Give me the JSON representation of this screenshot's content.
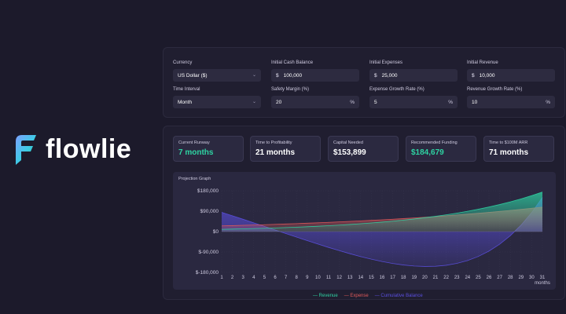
{
  "logo": {
    "text": "flowlie"
  },
  "settings": {
    "currency": {
      "label": "Currency",
      "value": "US Dollar ($)"
    },
    "initial_cash": {
      "label": "Initial Cash Balance",
      "prefix": "$",
      "value": "100,000"
    },
    "initial_expenses": {
      "label": "Initial Expenses",
      "prefix": "$",
      "value": "25,000"
    },
    "initial_revenue": {
      "label": "Initial Revenue",
      "prefix": "$",
      "value": "10,000"
    },
    "time_interval": {
      "label": "Time Interval",
      "value": "Month"
    },
    "safety_margin": {
      "label": "Safety Margin (%)",
      "value": "20",
      "suffix": "%"
    },
    "expense_growth": {
      "label": "Expense Growth Rate (%)",
      "value": "5",
      "suffix": "%"
    },
    "revenue_growth": {
      "label": "Revenue Growth Rate (%)",
      "value": "10",
      "suffix": "%"
    }
  },
  "stats": [
    {
      "label": "Current Runway",
      "value": "7 months",
      "highlight": true
    },
    {
      "label": "Time to Profitability",
      "value": "21 months",
      "highlight": false
    },
    {
      "label": "Capital Needed",
      "value": "$153,899",
      "highlight": false
    },
    {
      "label": "Recommended Funding",
      "value": "$184,679",
      "highlight": true
    },
    {
      "label": "Time to $100M ARR",
      "value": "71 months",
      "highlight": false
    }
  ],
  "colors": {
    "revenue": "#2ed3a2",
    "expense": "#e05a5a",
    "balance": "#5b4fe0",
    "accent": "#2ed3a2"
  },
  "chart_data": {
    "type": "area",
    "title": "Projection Graph",
    "xlabel": "months",
    "ylabel": "",
    "x": [
      1,
      2,
      3,
      4,
      5,
      6,
      7,
      8,
      9,
      10,
      11,
      12,
      13,
      14,
      15,
      16,
      17,
      18,
      19,
      20,
      21,
      22,
      23,
      24,
      25,
      26,
      27,
      28,
      29,
      30,
      31
    ],
    "ylim": [
      -180000,
      180000
    ],
    "yticks": [
      180000,
      90000,
      0,
      -90000,
      -180000
    ],
    "ytick_labels": [
      "$180,000",
      "$90,000",
      "$0",
      "$-90,000",
      "$-180,000"
    ],
    "series": [
      {
        "name": "Revenue",
        "values": [
          10000,
          11000,
          12100,
          13310,
          14641,
          16105,
          17716,
          19487,
          21436,
          23579,
          25937,
          28531,
          31384,
          34523,
          37975,
          41772,
          45950,
          50545,
          55599,
          61159,
          67275,
          74002,
          81403,
          89543,
          98497,
          108347,
          119182,
          131100,
          144210,
          158631,
          174494
        ]
      },
      {
        "name": "Expense",
        "values": [
          25000,
          26250,
          27563,
          28941,
          30388,
          31907,
          33502,
          35178,
          36936,
          38783,
          40722,
          42758,
          44896,
          47141,
          49498,
          51973,
          54572,
          57300,
          60165,
          63174,
          66332,
          69649,
          73131,
          76788,
          80627,
          84659,
          88892,
          93336,
          98003,
          102903,
          108048
        ]
      },
      {
        "name": "Cumulative Balance",
        "values": [
          85000,
          69750,
          54288,
          38657,
          22910,
          7108,
          -8678,
          -24369,
          -39869,
          -55073,
          -69858,
          -84085,
          -97597,
          -110215,
          -121738,
          -131939,
          -140561,
          -147316,
          -151882,
          -153897,
          -152954,
          -148601,
          -140329,
          -127574,
          -109704,
          -86016,
          -55726,
          -17962,
          28245,
          84005,
          150451
        ]
      }
    ],
    "legend_position": "bottom-center",
    "grid": true
  }
}
